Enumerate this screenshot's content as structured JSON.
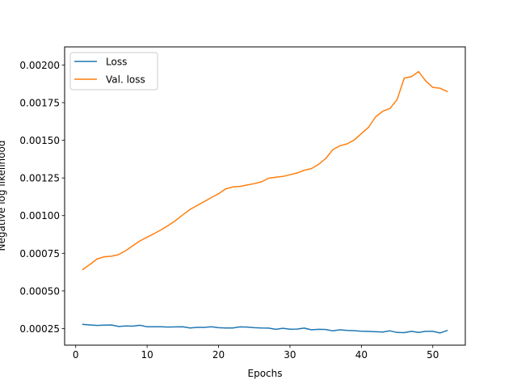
{
  "chart_data": {
    "type": "line",
    "xlabel": "Epochs",
    "ylabel": "Negative log likelihood",
    "xlim": [
      -1.55,
      54.55
    ],
    "ylim": [
      0.00014,
      0.00212
    ],
    "xticks": [
      0,
      10,
      20,
      30,
      40,
      50
    ],
    "yticks": [
      0.00025,
      0.0005,
      0.00075,
      0.001,
      0.00125,
      0.0015,
      0.00175,
      0.002
    ],
    "ytick_labels": [
      "0.00025",
      "0.00050",
      "0.00075",
      "0.00100",
      "0.00125",
      "0.00150",
      "0.00175",
      "0.00200"
    ],
    "grid": false,
    "legend_position": "upper-left",
    "series": [
      {
        "name": "Loss",
        "color": "#1f77b4",
        "x": [
          1,
          2,
          3,
          4,
          5,
          6,
          7,
          8,
          9,
          10,
          11,
          12,
          13,
          14,
          15,
          16,
          17,
          18,
          19,
          20,
          21,
          22,
          23,
          24,
          25,
          26,
          27,
          28,
          29,
          30,
          31,
          32,
          33,
          34,
          35,
          36,
          37,
          38,
          39,
          40,
          41,
          42,
          43,
          44,
          45,
          46,
          47,
          48,
          49,
          50,
          51,
          52
        ],
        "values": [
          0.000278,
          0.000274,
          0.000271,
          0.000273,
          0.000274,
          0.000264,
          0.000267,
          0.000266,
          0.000272,
          0.000262,
          0.000262,
          0.000262,
          0.00026,
          0.000261,
          0.000262,
          0.000254,
          0.000258,
          0.000258,
          0.000262,
          0.000256,
          0.000254,
          0.000254,
          0.000261,
          0.00026,
          0.000256,
          0.000254,
          0.000253,
          0.000245,
          0.000252,
          0.000246,
          0.000247,
          0.000253,
          0.000242,
          0.000245,
          0.000244,
          0.000235,
          0.000242,
          0.000238,
          0.000236,
          0.000233,
          0.000231,
          0.000229,
          0.000227,
          0.000235,
          0.000224,
          0.000223,
          0.000232,
          0.000224,
          0.000232,
          0.000232,
          0.000221,
          0.000237
        ]
      },
      {
        "name": "Val. loss",
        "color": "#ff7f0e",
        "x": [
          1,
          2,
          3,
          4,
          5,
          6,
          7,
          8,
          9,
          10,
          11,
          12,
          13,
          14,
          15,
          16,
          17,
          18,
          19,
          20,
          21,
          22,
          23,
          24,
          25,
          26,
          27,
          28,
          29,
          30,
          31,
          32,
          33,
          34,
          35,
          36,
          37,
          38,
          39,
          40,
          41,
          42,
          43,
          44,
          45,
          46,
          47,
          48,
          49,
          50,
          51,
          52
        ],
        "values": [
          0.000643,
          0.000676,
          0.000712,
          0.000727,
          0.00073,
          0.000741,
          0.000767,
          0.0008,
          0.000832,
          0.000857,
          0.000881,
          0.000907,
          0.000935,
          0.000968,
          0.001005,
          0.001041,
          0.001067,
          0.001093,
          0.00112,
          0.001145,
          0.001178,
          0.00119,
          0.001194,
          0.001203,
          0.001212,
          0.001224,
          0.001248,
          0.001255,
          0.00126,
          0.001271,
          0.001283,
          0.001301,
          0.001312,
          0.00134,
          0.001379,
          0.001438,
          0.001464,
          0.001476,
          0.001502,
          0.001545,
          0.001586,
          0.001656,
          0.001693,
          0.001711,
          0.00177,
          0.001913,
          0.001922,
          0.001956,
          0.001894,
          0.001851,
          0.001846,
          0.001824
        ]
      }
    ]
  }
}
